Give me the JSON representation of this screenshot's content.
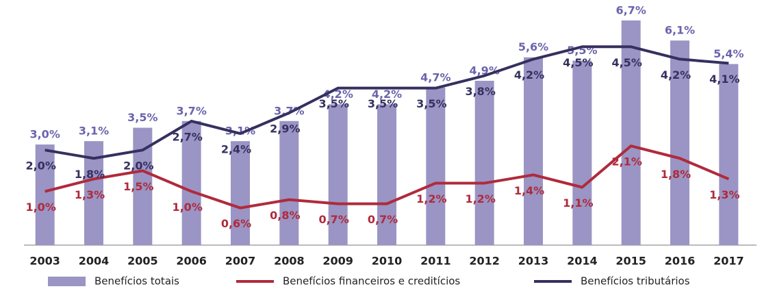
{
  "chart_data": {
    "type": "bar",
    "categories": [
      "2003",
      "2004",
      "2005",
      "2006",
      "2007",
      "2008",
      "2009",
      "2010",
      "2011",
      "2012",
      "2013",
      "2014",
      "2015",
      "2016",
      "2017"
    ],
    "series": [
      {
        "name": "Benefícios totais",
        "type": "bar",
        "color": "#9a95c4",
        "label_color": "#6a64ad",
        "values": [
          3.0,
          3.1,
          3.5,
          3.7,
          3.1,
          3.7,
          4.2,
          4.2,
          4.7,
          4.9,
          5.6,
          5.5,
          6.7,
          6.1,
          5.4
        ],
        "value_labels": [
          "3,0%",
          "3,1%",
          "3,5%",
          "3,7%",
          "3,1%",
          "3,7%",
          "4,2%",
          "4,2%",
          "4,7%",
          "4,9%",
          "5,6%",
          "5,5%",
          "6,7%",
          "6,1%",
          "5,4%"
        ]
      },
      {
        "name": "Benefícios financeiros e creditícios",
        "type": "line",
        "axis": "y2",
        "color": "#b02a3c",
        "label_color": "#b02a3c",
        "values": [
          1.0,
          1.3,
          1.5,
          1.0,
          0.6,
          0.8,
          0.7,
          0.7,
          1.2,
          1.2,
          1.4,
          1.1,
          2.1,
          1.8,
          1.3
        ],
        "value_labels": [
          "1,0%",
          "1,3%",
          "1,5%",
          "1,0%",
          "0,6%",
          "0,8%",
          "0,7%",
          "0,7%",
          "1,2%",
          "1,2%",
          "1,4%",
          "1,1%",
          "2,1%",
          "1,8%",
          "1,3%"
        ]
      },
      {
        "name": "Benefícios tributários",
        "type": "line",
        "axis": "y2",
        "color": "#35305f",
        "label_color": "#35305f",
        "values": [
          2.0,
          1.8,
          2.0,
          2.7,
          2.4,
          2.9,
          3.5,
          3.5,
          3.5,
          3.8,
          4.2,
          4.5,
          4.5,
          4.2,
          4.1
        ],
        "value_labels": [
          "2,0%",
          "1,8%",
          "2,0%",
          "2,7%",
          "2,4%",
          "2,9%",
          "3,5%",
          "3,5%",
          "3,5%",
          "3,8%",
          "4,2%",
          "4,5%",
          "4,5%",
          "4,2%",
          "4,1%"
        ]
      }
    ],
    "ylim": [
      0,
      6.9
    ],
    "y2lim": [
      -0.3,
      5.3
    ],
    "grid": false,
    "legend": "bottom"
  }
}
